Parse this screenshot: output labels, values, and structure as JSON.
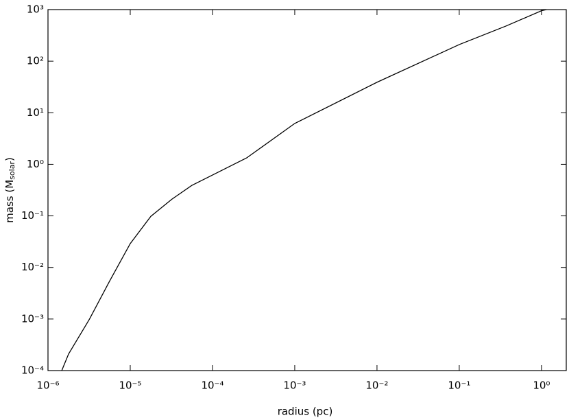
{
  "chart_data": {
    "type": "line",
    "log_x": true,
    "log_y": true,
    "grid": false,
    "xlabel": "radius (pc)",
    "ylabel": [
      "mass (M",
      "solar",
      ")"
    ],
    "xlim": [
      1e-06,
      2
    ],
    "ylim": [
      0.0001,
      1000
    ],
    "xticks": [
      {
        "value": 1e-06,
        "label": "10⁻⁶"
      },
      {
        "value": 1e-05,
        "label": "10⁻⁵"
      },
      {
        "value": 0.0001,
        "label": "10⁻⁴"
      },
      {
        "value": 0.001,
        "label": "10⁻³"
      },
      {
        "value": 0.01,
        "label": "10⁻²"
      },
      {
        "value": 0.1,
        "label": "10⁻¹"
      },
      {
        "value": 1,
        "label": "10⁰"
      }
    ],
    "yticks": [
      {
        "value": 0.0001,
        "label": "10⁻⁴"
      },
      {
        "value": 0.001,
        "label": "10⁻³"
      },
      {
        "value": 0.01,
        "label": "10⁻²"
      },
      {
        "value": 0.1,
        "label": "10⁻¹"
      },
      {
        "value": 1,
        "label": "10⁰"
      },
      {
        "value": 10,
        "label": "10¹"
      },
      {
        "value": 100,
        "label": "10²"
      },
      {
        "value": 1000,
        "label": "10³"
      }
    ],
    "series": [
      {
        "name": "mass",
        "color": "#000000",
        "x": [
          1.47e-06,
          1.78e-06,
          3.2e-06,
          5.6e-06,
          1e-05,
          1.78e-05,
          3.2e-05,
          5.6e-05,
          0.0001,
          0.00026,
          0.001,
          0.01,
          0.1,
          0.37,
          1,
          1.15
        ],
        "values": [
          0.0001,
          0.00021,
          0.001,
          0.0054,
          0.029,
          0.098,
          0.21,
          0.39,
          0.62,
          1.33,
          6.2,
          39,
          210,
          480,
          950,
          1000
        ]
      }
    ]
  }
}
